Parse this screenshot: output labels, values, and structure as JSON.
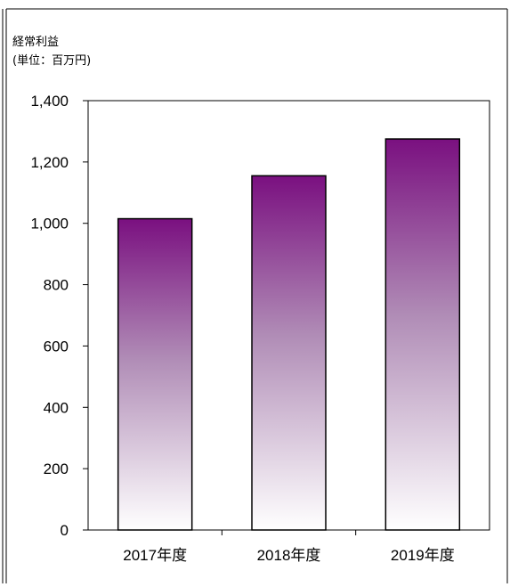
{
  "chart_data": {
    "type": "bar",
    "title": "",
    "ylabel_lines": [
      "経常利益",
      "(単位：百万円)"
    ],
    "xlabel": "",
    "categories": [
      "2017年度",
      "2018年度",
      "2019年度"
    ],
    "values": [
      1015,
      1155,
      1275
    ],
    "ylim": [
      0,
      1400
    ],
    "yticks": [
      0,
      200,
      400,
      600,
      800,
      1000,
      1200,
      1400
    ],
    "ytick_labels": [
      "0",
      "200",
      "400",
      "600",
      "800",
      "1,000",
      "1,200",
      "1,400"
    ],
    "grid": false,
    "legend": "none",
    "colors": {
      "bar_top": "#7a1080",
      "bar_bottom": "#ffffff",
      "outline": "#000000"
    }
  }
}
